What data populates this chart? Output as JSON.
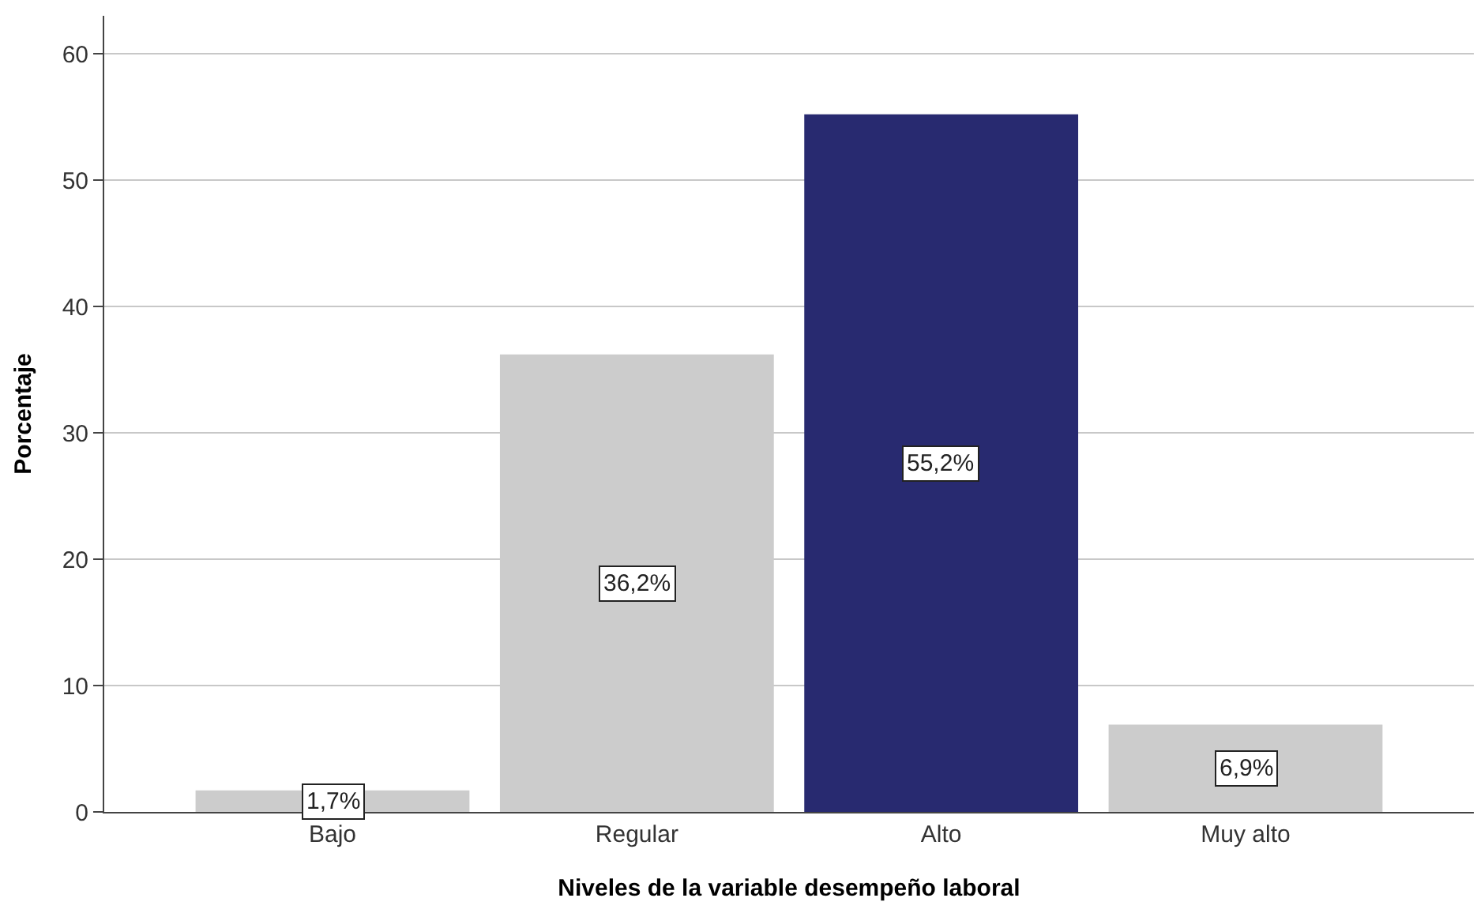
{
  "chart_data": {
    "type": "bar",
    "xlabel": "Niveles de la variable desempeño laboral",
    "ylabel": "Porcentaje",
    "categories": [
      "Bajo",
      "Regular",
      "Alto",
      "Muy alto"
    ],
    "values": [
      1.7,
      36.2,
      55.2,
      6.9
    ],
    "colors": [
      "#cccccc",
      "#cccccc",
      "#282a70",
      "#cccccc"
    ],
    "value_labels": [
      "1,7%",
      "36,2%",
      "55,2%",
      "6,9%"
    ],
    "ylim": [
      0,
      63
    ],
    "yticks": [
      0,
      10,
      20,
      30,
      40,
      50,
      60
    ],
    "grid": "y"
  }
}
